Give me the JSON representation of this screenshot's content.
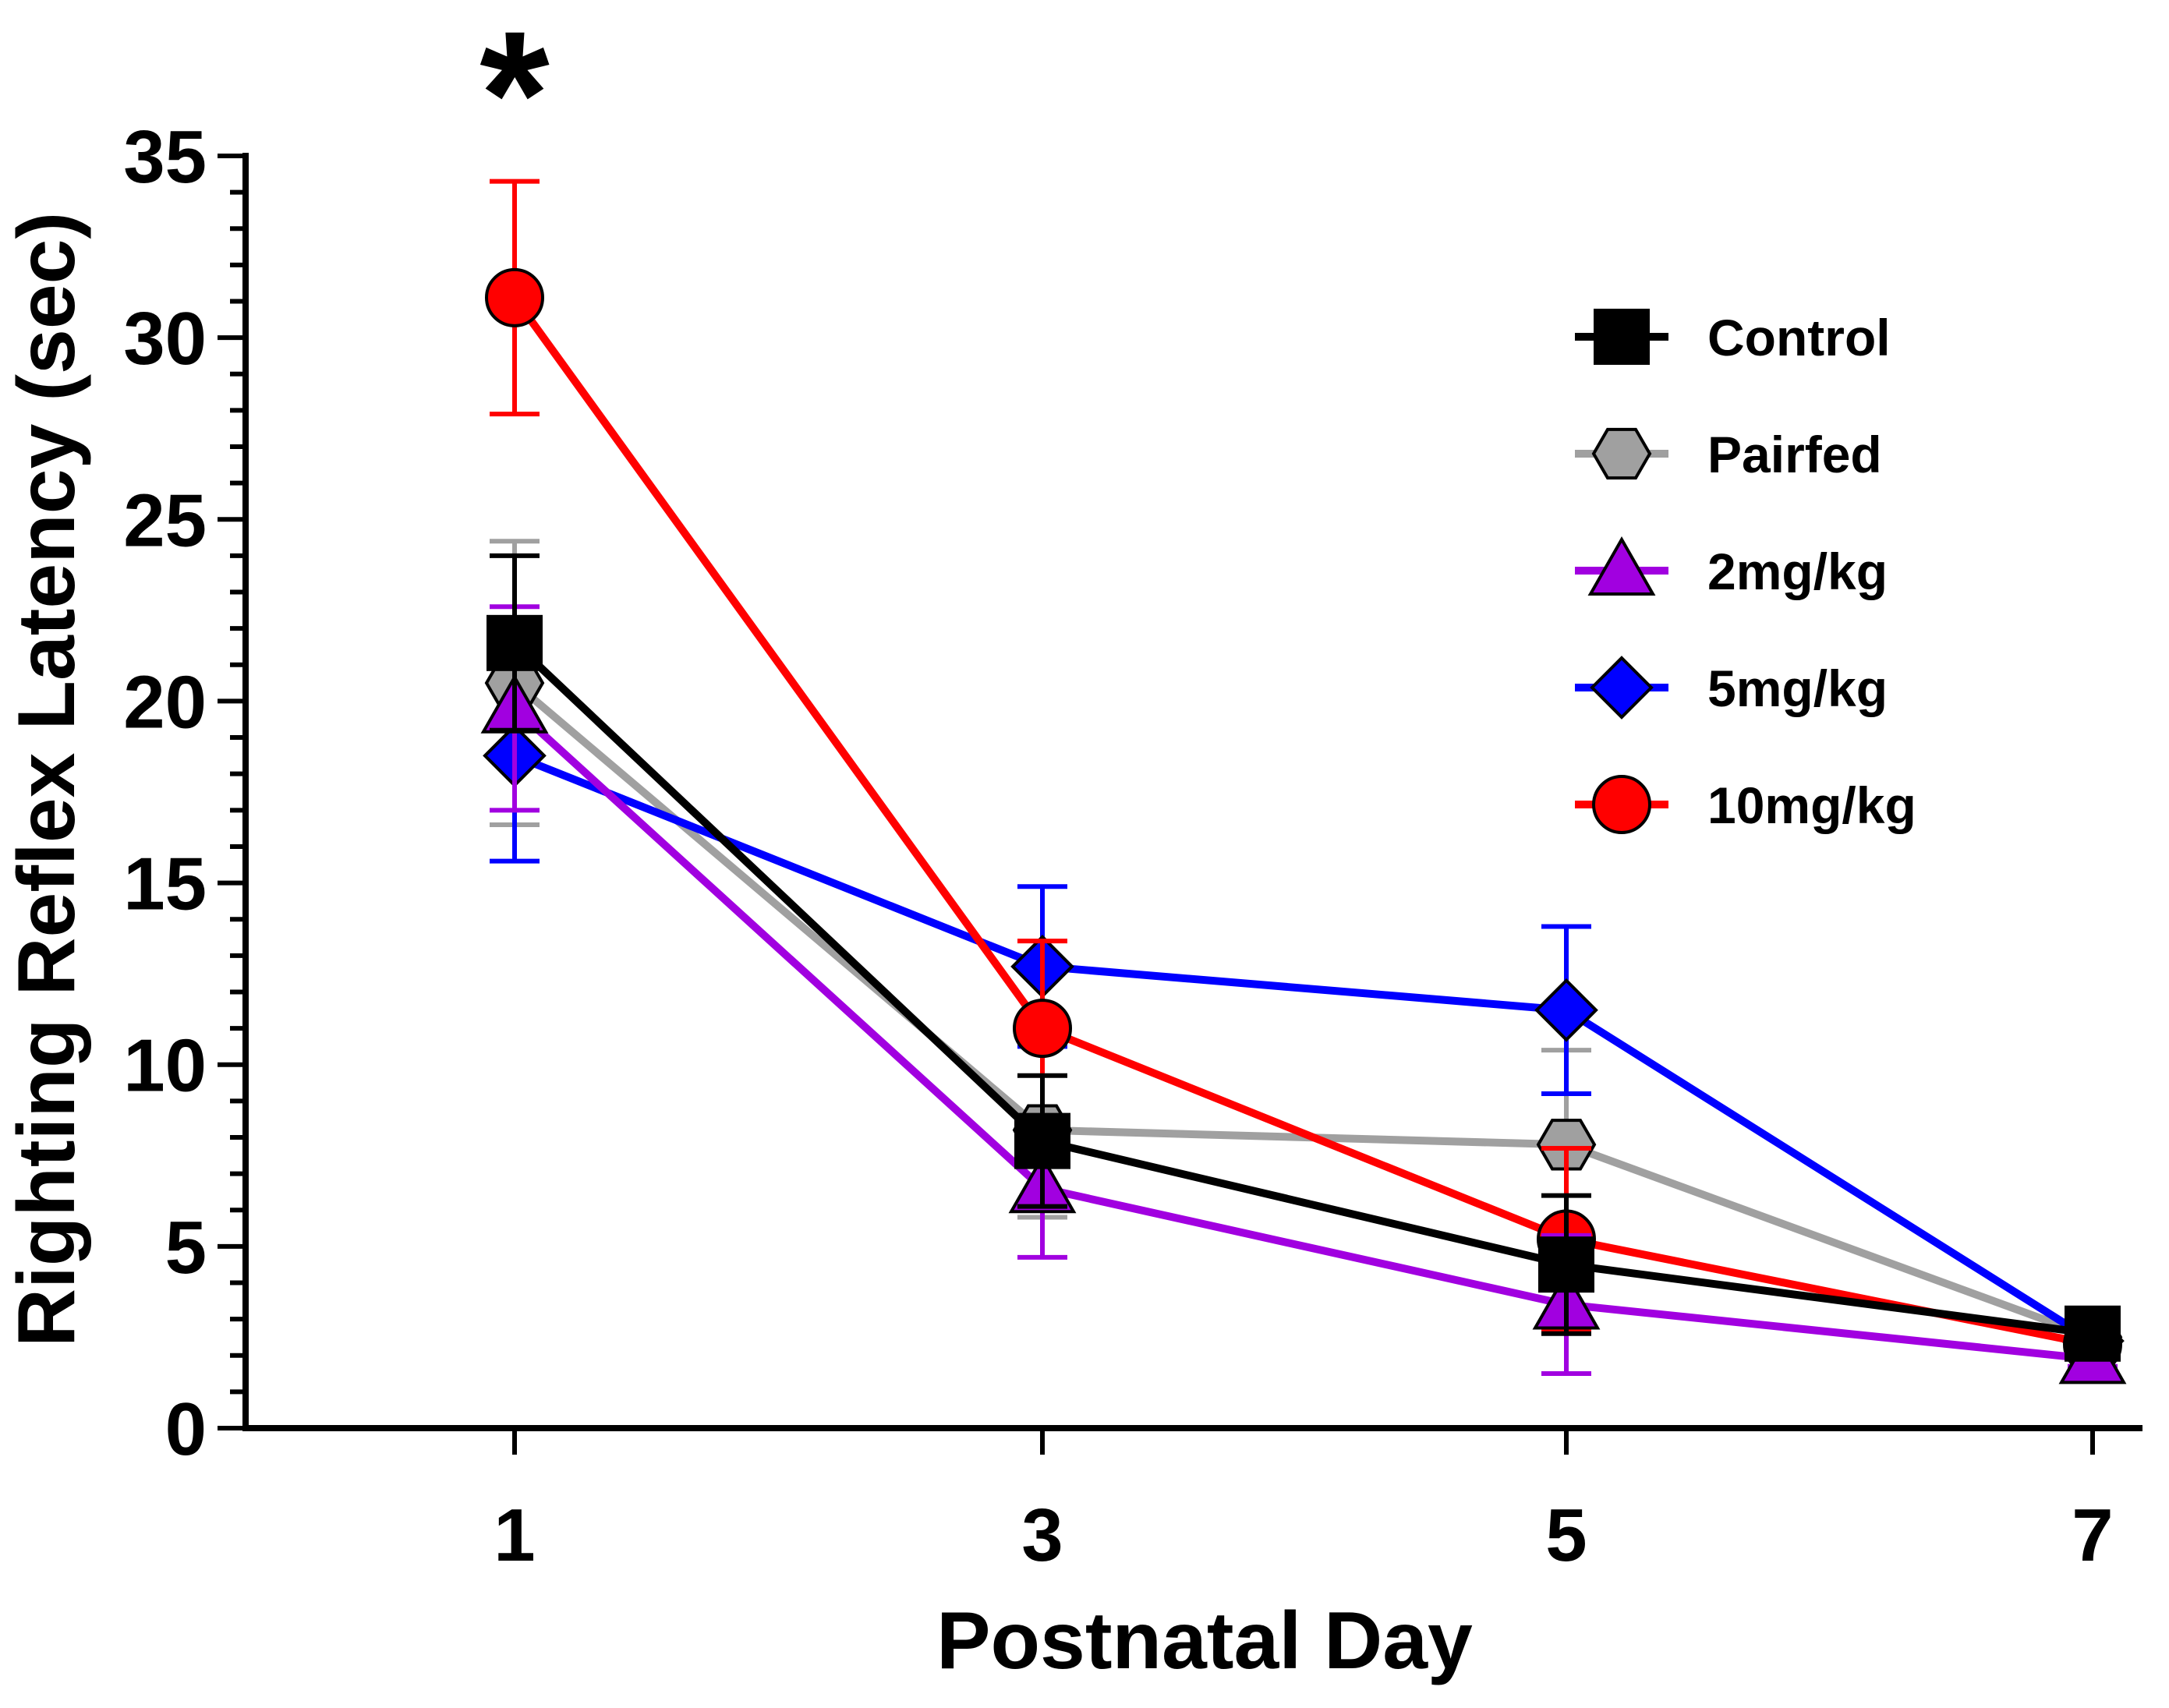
{
  "chart_data": {
    "type": "line",
    "title": "",
    "xlabel": "Postnatal Day",
    "ylabel": "Righting Reflex Latency (sec)",
    "x": [
      1,
      3,
      5,
      7
    ],
    "x_tick_labels": [
      "1",
      "3",
      "5",
      "7"
    ],
    "ylim": [
      0,
      35
    ],
    "y_ticks": [
      0,
      5,
      10,
      15,
      20,
      25,
      30,
      35
    ],
    "y_tick_labels": [
      "0",
      "5",
      "10",
      "15",
      "20",
      "25",
      "30",
      "35"
    ],
    "legend_position": "top-right",
    "annotation": {
      "text": "*",
      "x": 1
    },
    "series": [
      {
        "name": "Control",
        "color": "#000000",
        "marker": "square",
        "values": [
          21.6,
          7.9,
          4.5,
          2.6
        ],
        "errors": [
          2.4,
          1.8,
          1.9,
          0.3
        ]
      },
      {
        "name": "Pairfed",
        "color": "#a0a0a0",
        "marker": "hexagon",
        "values": [
          20.5,
          8.2,
          7.8,
          2.5
        ],
        "errors": [
          3.9,
          2.4,
          2.6,
          0.3
        ]
      },
      {
        "name": "2mg/kg",
        "color": "#a100e0",
        "marker": "triangle",
        "values": [
          19.8,
          6.6,
          3.4,
          1.9
        ],
        "errors": [
          2.8,
          1.9,
          1.9,
          0.2
        ]
      },
      {
        "name": "5mg/kg",
        "color": "#0000ff",
        "marker": "diamond",
        "values": [
          18.5,
          12.7,
          11.5,
          2.4
        ],
        "errors": [
          2.9,
          2.2,
          2.3,
          0.3
        ]
      },
      {
        "name": "10mg/kg",
        "color": "#ff0000",
        "marker": "circle",
        "values": [
          31.1,
          11.0,
          5.2,
          2.3
        ],
        "errors": [
          3.2,
          2.4,
          2.5,
          0.3
        ]
      }
    ]
  }
}
